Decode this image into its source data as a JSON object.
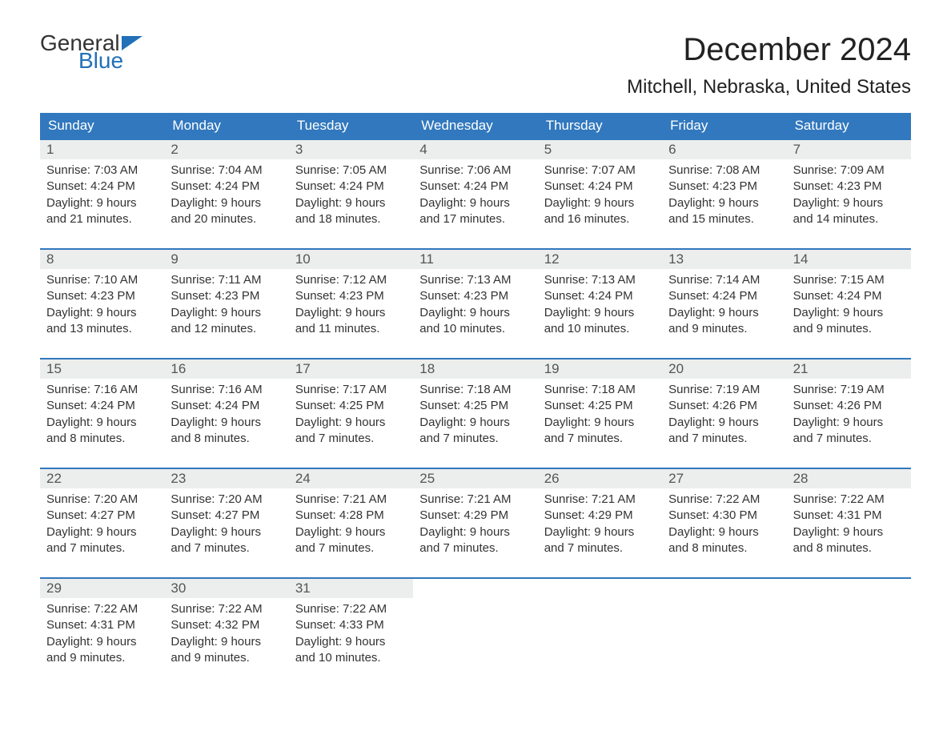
{
  "logo": {
    "word1": "General",
    "word2": "Blue",
    "flag_color": "#2270b8"
  },
  "title": "December 2024",
  "location": "Mitchell, Nebraska, United States",
  "colors": {
    "header_bg": "#3178be",
    "header_text": "#ffffff",
    "row_border": "#3178be",
    "daynum_bg": "#eceded",
    "text": "#333333",
    "logo_blue": "#2270b8"
  },
  "weekdays": [
    "Sunday",
    "Monday",
    "Tuesday",
    "Wednesday",
    "Thursday",
    "Friday",
    "Saturday"
  ],
  "weeks": [
    [
      {
        "n": "1",
        "sunrise": "Sunrise: 7:03 AM",
        "sunset": "Sunset: 4:24 PM",
        "d1": "Daylight: 9 hours",
        "d2": "and 21 minutes."
      },
      {
        "n": "2",
        "sunrise": "Sunrise: 7:04 AM",
        "sunset": "Sunset: 4:24 PM",
        "d1": "Daylight: 9 hours",
        "d2": "and 20 minutes."
      },
      {
        "n": "3",
        "sunrise": "Sunrise: 7:05 AM",
        "sunset": "Sunset: 4:24 PM",
        "d1": "Daylight: 9 hours",
        "d2": "and 18 minutes."
      },
      {
        "n": "4",
        "sunrise": "Sunrise: 7:06 AM",
        "sunset": "Sunset: 4:24 PM",
        "d1": "Daylight: 9 hours",
        "d2": "and 17 minutes."
      },
      {
        "n": "5",
        "sunrise": "Sunrise: 7:07 AM",
        "sunset": "Sunset: 4:24 PM",
        "d1": "Daylight: 9 hours",
        "d2": "and 16 minutes."
      },
      {
        "n": "6",
        "sunrise": "Sunrise: 7:08 AM",
        "sunset": "Sunset: 4:23 PM",
        "d1": "Daylight: 9 hours",
        "d2": "and 15 minutes."
      },
      {
        "n": "7",
        "sunrise": "Sunrise: 7:09 AM",
        "sunset": "Sunset: 4:23 PM",
        "d1": "Daylight: 9 hours",
        "d2": "and 14 minutes."
      }
    ],
    [
      {
        "n": "8",
        "sunrise": "Sunrise: 7:10 AM",
        "sunset": "Sunset: 4:23 PM",
        "d1": "Daylight: 9 hours",
        "d2": "and 13 minutes."
      },
      {
        "n": "9",
        "sunrise": "Sunrise: 7:11 AM",
        "sunset": "Sunset: 4:23 PM",
        "d1": "Daylight: 9 hours",
        "d2": "and 12 minutes."
      },
      {
        "n": "10",
        "sunrise": "Sunrise: 7:12 AM",
        "sunset": "Sunset: 4:23 PM",
        "d1": "Daylight: 9 hours",
        "d2": "and 11 minutes."
      },
      {
        "n": "11",
        "sunrise": "Sunrise: 7:13 AM",
        "sunset": "Sunset: 4:23 PM",
        "d1": "Daylight: 9 hours",
        "d2": "and 10 minutes."
      },
      {
        "n": "12",
        "sunrise": "Sunrise: 7:13 AM",
        "sunset": "Sunset: 4:24 PM",
        "d1": "Daylight: 9 hours",
        "d2": "and 10 minutes."
      },
      {
        "n": "13",
        "sunrise": "Sunrise: 7:14 AM",
        "sunset": "Sunset: 4:24 PM",
        "d1": "Daylight: 9 hours",
        "d2": "and 9 minutes."
      },
      {
        "n": "14",
        "sunrise": "Sunrise: 7:15 AM",
        "sunset": "Sunset: 4:24 PM",
        "d1": "Daylight: 9 hours",
        "d2": "and 9 minutes."
      }
    ],
    [
      {
        "n": "15",
        "sunrise": "Sunrise: 7:16 AM",
        "sunset": "Sunset: 4:24 PM",
        "d1": "Daylight: 9 hours",
        "d2": "and 8 minutes."
      },
      {
        "n": "16",
        "sunrise": "Sunrise: 7:16 AM",
        "sunset": "Sunset: 4:24 PM",
        "d1": "Daylight: 9 hours",
        "d2": "and 8 minutes."
      },
      {
        "n": "17",
        "sunrise": "Sunrise: 7:17 AM",
        "sunset": "Sunset: 4:25 PM",
        "d1": "Daylight: 9 hours",
        "d2": "and 7 minutes."
      },
      {
        "n": "18",
        "sunrise": "Sunrise: 7:18 AM",
        "sunset": "Sunset: 4:25 PM",
        "d1": "Daylight: 9 hours",
        "d2": "and 7 minutes."
      },
      {
        "n": "19",
        "sunrise": "Sunrise: 7:18 AM",
        "sunset": "Sunset: 4:25 PM",
        "d1": "Daylight: 9 hours",
        "d2": "and 7 minutes."
      },
      {
        "n": "20",
        "sunrise": "Sunrise: 7:19 AM",
        "sunset": "Sunset: 4:26 PM",
        "d1": "Daylight: 9 hours",
        "d2": "and 7 minutes."
      },
      {
        "n": "21",
        "sunrise": "Sunrise: 7:19 AM",
        "sunset": "Sunset: 4:26 PM",
        "d1": "Daylight: 9 hours",
        "d2": "and 7 minutes."
      }
    ],
    [
      {
        "n": "22",
        "sunrise": "Sunrise: 7:20 AM",
        "sunset": "Sunset: 4:27 PM",
        "d1": "Daylight: 9 hours",
        "d2": "and 7 minutes."
      },
      {
        "n": "23",
        "sunrise": "Sunrise: 7:20 AM",
        "sunset": "Sunset: 4:27 PM",
        "d1": "Daylight: 9 hours",
        "d2": "and 7 minutes."
      },
      {
        "n": "24",
        "sunrise": "Sunrise: 7:21 AM",
        "sunset": "Sunset: 4:28 PM",
        "d1": "Daylight: 9 hours",
        "d2": "and 7 minutes."
      },
      {
        "n": "25",
        "sunrise": "Sunrise: 7:21 AM",
        "sunset": "Sunset: 4:29 PM",
        "d1": "Daylight: 9 hours",
        "d2": "and 7 minutes."
      },
      {
        "n": "26",
        "sunrise": "Sunrise: 7:21 AM",
        "sunset": "Sunset: 4:29 PM",
        "d1": "Daylight: 9 hours",
        "d2": "and 7 minutes."
      },
      {
        "n": "27",
        "sunrise": "Sunrise: 7:22 AM",
        "sunset": "Sunset: 4:30 PM",
        "d1": "Daylight: 9 hours",
        "d2": "and 8 minutes."
      },
      {
        "n": "28",
        "sunrise": "Sunrise: 7:22 AM",
        "sunset": "Sunset: 4:31 PM",
        "d1": "Daylight: 9 hours",
        "d2": "and 8 minutes."
      }
    ],
    [
      {
        "n": "29",
        "sunrise": "Sunrise: 7:22 AM",
        "sunset": "Sunset: 4:31 PM",
        "d1": "Daylight: 9 hours",
        "d2": "and 9 minutes."
      },
      {
        "n": "30",
        "sunrise": "Sunrise: 7:22 AM",
        "sunset": "Sunset: 4:32 PM",
        "d1": "Daylight: 9 hours",
        "d2": "and 9 minutes."
      },
      {
        "n": "31",
        "sunrise": "Sunrise: 7:22 AM",
        "sunset": "Sunset: 4:33 PM",
        "d1": "Daylight: 9 hours",
        "d2": "and 10 minutes."
      },
      null,
      null,
      null,
      null
    ]
  ]
}
